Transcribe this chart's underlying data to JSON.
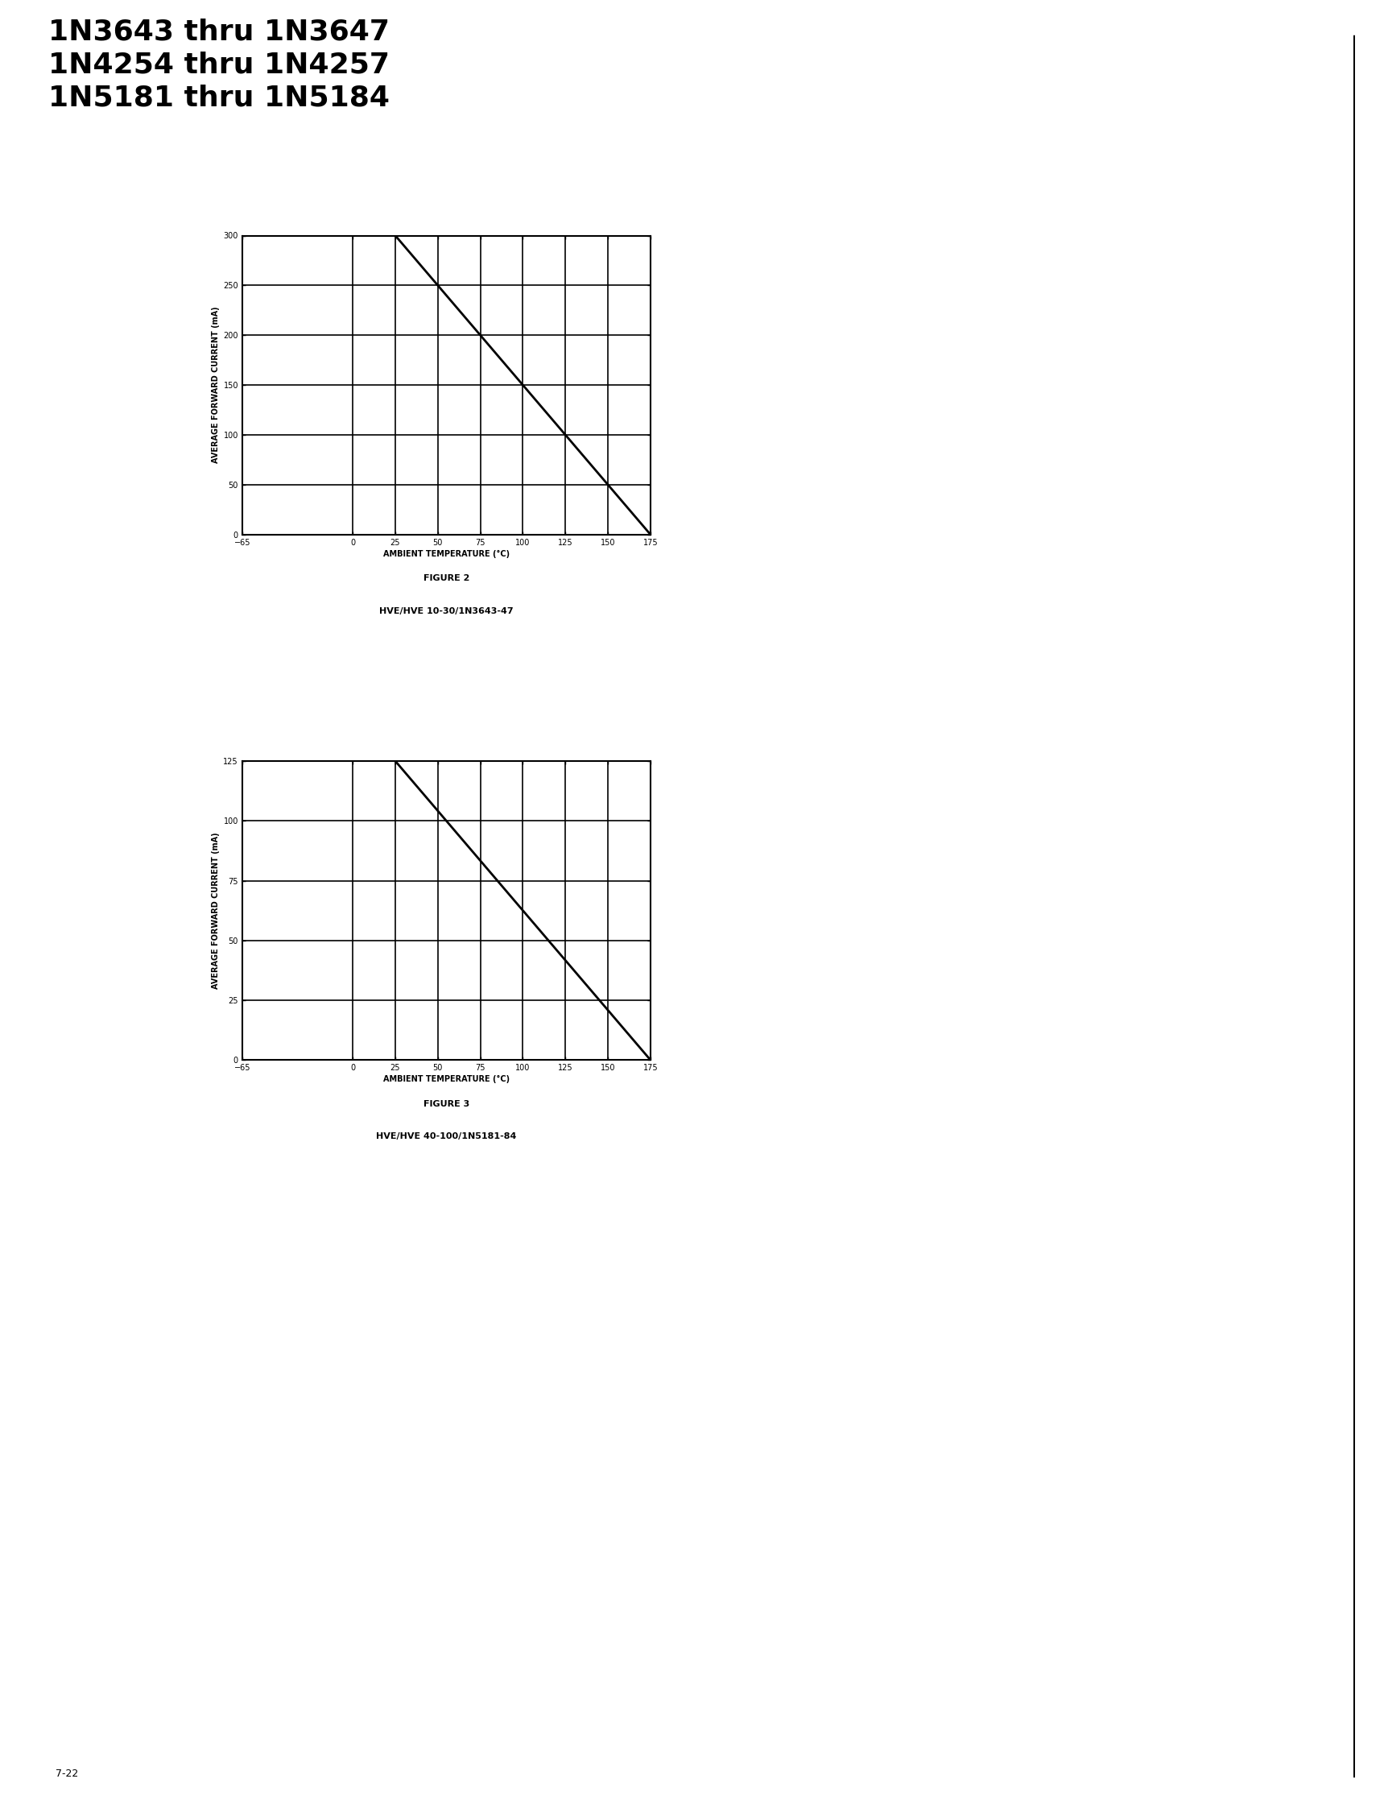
{
  "header_lines": [
    "1N3643 thru 1N3647",
    "1N4254 thru 1N4257",
    "1N5181 thru 1N5184"
  ],
  "fig2": {
    "title": "FIGURE 2",
    "subtitle": "HVE/HVE 10-30/1N3643-47",
    "xlabel": "AMBIENT TEMPERATURE (°C)",
    "ylabel": "AVERAGE FORWARD CURRENT (mA)",
    "xlim": [
      -65,
      175
    ],
    "ylim": [
      0,
      300
    ],
    "xticks": [
      -65,
      0,
      25,
      50,
      75,
      100,
      125,
      150,
      175
    ],
    "yticks": [
      0,
      50,
      100,
      150,
      200,
      250,
      300
    ],
    "line_x": [
      25,
      175
    ],
    "line_y": [
      300,
      0
    ]
  },
  "fig3": {
    "title": "FIGURE 3",
    "subtitle": "HVE/HVE 40-100/1N5181-84",
    "xlabel": "AMBIENT TEMPERATURE (°C)",
    "ylabel": "AVERAGE FORWARD CURRENT (mA)",
    "xlim": [
      -65,
      175
    ],
    "ylim": [
      0,
      125
    ],
    "xticks": [
      -65,
      0,
      25,
      50,
      75,
      100,
      125,
      150,
      175
    ],
    "yticks": [
      0,
      25,
      50,
      75,
      100,
      125
    ],
    "line_x": [
      25,
      175
    ],
    "line_y": [
      125,
      0
    ]
  },
  "page_number": "7-22",
  "background_color": "#ffffff",
  "line_color": "#000000",
  "grid_color": "#000000",
  "text_color": "#000000",
  "header_fontsize": 26,
  "chart_label_fontsize": 7,
  "chart_tick_fontsize": 7,
  "caption_fontsize": 8
}
